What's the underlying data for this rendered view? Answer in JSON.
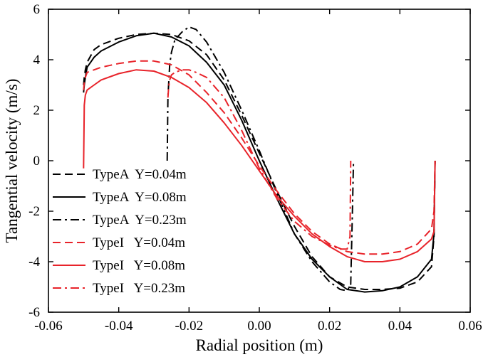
{
  "chart_data": {
    "type": "line",
    "title": "",
    "xlabel": "Radial position (m)",
    "ylabel": "Tangential velocity (m/s)",
    "xlim": [
      -0.06,
      0.06
    ],
    "ylim": [
      -6,
      6
    ],
    "xticks": [
      -0.06,
      -0.04,
      -0.02,
      0.0,
      0.02,
      0.04,
      0.06
    ],
    "xtick_labels": [
      "-0.06",
      "-0.04",
      "-0.02",
      "0.00",
      "0.02",
      "0.04",
      "0.06"
    ],
    "yticks": [
      -6,
      -4,
      -2,
      0,
      2,
      4,
      6
    ],
    "ytick_labels": [
      "-6",
      "-4",
      "-2",
      "0",
      "2",
      "4",
      "6"
    ],
    "grid": false,
    "legend_position": "left",
    "series": [
      {
        "name": "TypeA  Y=0.04m",
        "color": "#000000",
        "dash": "dashed",
        "x": [
          -0.05,
          -0.0498,
          -0.0495,
          -0.049,
          -0.047,
          -0.045,
          -0.04,
          -0.035,
          -0.03,
          -0.025,
          -0.02,
          -0.015,
          -0.01,
          -0.005,
          0.0,
          0.005,
          0.01,
          0.015,
          0.02,
          0.025,
          0.03,
          0.035,
          0.04,
          0.045,
          0.049,
          0.0497,
          0.05
        ],
        "y": [
          3.0,
          3.3,
          3.6,
          3.9,
          4.4,
          4.6,
          4.85,
          5.0,
          5.05,
          5.0,
          4.75,
          4.2,
          3.2,
          1.8,
          0.3,
          -1.2,
          -2.6,
          -3.8,
          -4.6,
          -5.0,
          -5.1,
          -5.1,
          -5.05,
          -4.8,
          -4.2,
          -3.0,
          0.0
        ]
      },
      {
        "name": "TypeA  Y=0.08m",
        "color": "#000000",
        "dash": "solid",
        "x": [
          -0.05,
          -0.0498,
          -0.0495,
          -0.049,
          -0.047,
          -0.045,
          -0.04,
          -0.035,
          -0.03,
          -0.025,
          -0.02,
          -0.015,
          -0.01,
          -0.005,
          0.0,
          0.005,
          0.01,
          0.015,
          0.02,
          0.025,
          0.03,
          0.035,
          0.04,
          0.045,
          0.049,
          0.0497,
          0.05
        ],
        "y": [
          2.7,
          3.0,
          3.3,
          3.7,
          4.1,
          4.35,
          4.7,
          4.95,
          5.05,
          4.9,
          4.55,
          3.9,
          3.0,
          1.6,
          0.0,
          -1.5,
          -2.9,
          -3.9,
          -4.6,
          -5.1,
          -5.2,
          -5.15,
          -5.0,
          -4.6,
          -3.9,
          -2.9,
          0.0
        ]
      },
      {
        "name": "TypeA  Y=0.23m",
        "color": "#000000",
        "dash": "dashdot",
        "x": [
          -0.0262,
          -0.026,
          -0.0255,
          -0.025,
          -0.024,
          -0.022,
          -0.02,
          -0.018,
          -0.015,
          -0.01,
          -0.005,
          0.0,
          0.005,
          0.01,
          0.015,
          0.02,
          0.023,
          0.025,
          0.026,
          0.0265,
          0.0268
        ],
        "y": [
          0.0,
          2.5,
          3.8,
          4.3,
          4.8,
          5.1,
          5.3,
          5.2,
          4.7,
          3.5,
          2.0,
          0.4,
          -1.3,
          -2.9,
          -4.0,
          -4.8,
          -5.1,
          -5.15,
          -4.9,
          -2.0,
          0.0
        ]
      },
      {
        "name": "TypeI   Y=0.04m",
        "color": "#e8232a",
        "dash": "dashed",
        "x": [
          -0.05,
          -0.0498,
          -0.0495,
          -0.049,
          -0.047,
          -0.045,
          -0.04,
          -0.035,
          -0.03,
          -0.025,
          -0.02,
          -0.015,
          -0.01,
          -0.005,
          0.0,
          0.005,
          0.01,
          0.015,
          0.02,
          0.025,
          0.03,
          0.035,
          0.04,
          0.045,
          0.049,
          0.0497,
          0.05
        ],
        "y": [
          2.8,
          3.1,
          3.3,
          3.5,
          3.6,
          3.7,
          3.85,
          3.95,
          3.95,
          3.8,
          3.4,
          2.7,
          1.9,
          0.9,
          -0.2,
          -1.2,
          -2.1,
          -2.8,
          -3.3,
          -3.6,
          -3.7,
          -3.7,
          -3.6,
          -3.3,
          -2.7,
          -2.0,
          0.0
        ]
      },
      {
        "name": "TypeI   Y=0.08m",
        "color": "#e8232a",
        "dash": "solid",
        "x": [
          -0.05,
          -0.0498,
          -0.0495,
          -0.049,
          -0.047,
          -0.045,
          -0.04,
          -0.035,
          -0.03,
          -0.025,
          -0.02,
          -0.015,
          -0.01,
          -0.005,
          0.0,
          0.005,
          0.01,
          0.015,
          0.02,
          0.025,
          0.03,
          0.035,
          0.04,
          0.045,
          0.049,
          0.0497,
          0.05
        ],
        "y": [
          -0.3,
          2.2,
          2.6,
          2.8,
          3.0,
          3.2,
          3.45,
          3.6,
          3.55,
          3.3,
          2.9,
          2.3,
          1.5,
          0.6,
          -0.4,
          -1.4,
          -2.2,
          -2.9,
          -3.4,
          -3.8,
          -4.0,
          -4.0,
          -3.9,
          -3.6,
          -3.1,
          -2.8,
          0.0
        ]
      },
      {
        "name": "TypeI   Y=0.23m",
        "color": "#e8232a",
        "dash": "dashdot",
        "x": [
          -0.026,
          -0.0258,
          -0.0255,
          -0.025,
          -0.024,
          -0.022,
          -0.02,
          -0.018,
          -0.015,
          -0.01,
          -0.005,
          0.0,
          0.005,
          0.01,
          0.015,
          0.02,
          0.023,
          0.025,
          0.0258,
          0.026
        ],
        "y": [
          2.5,
          2.9,
          3.2,
          3.4,
          3.5,
          3.6,
          3.6,
          3.5,
          3.3,
          2.5,
          1.2,
          -0.3,
          -1.5,
          -2.4,
          -3.0,
          -3.35,
          -3.5,
          -3.5,
          -3.0,
          0.0
        ]
      }
    ]
  }
}
